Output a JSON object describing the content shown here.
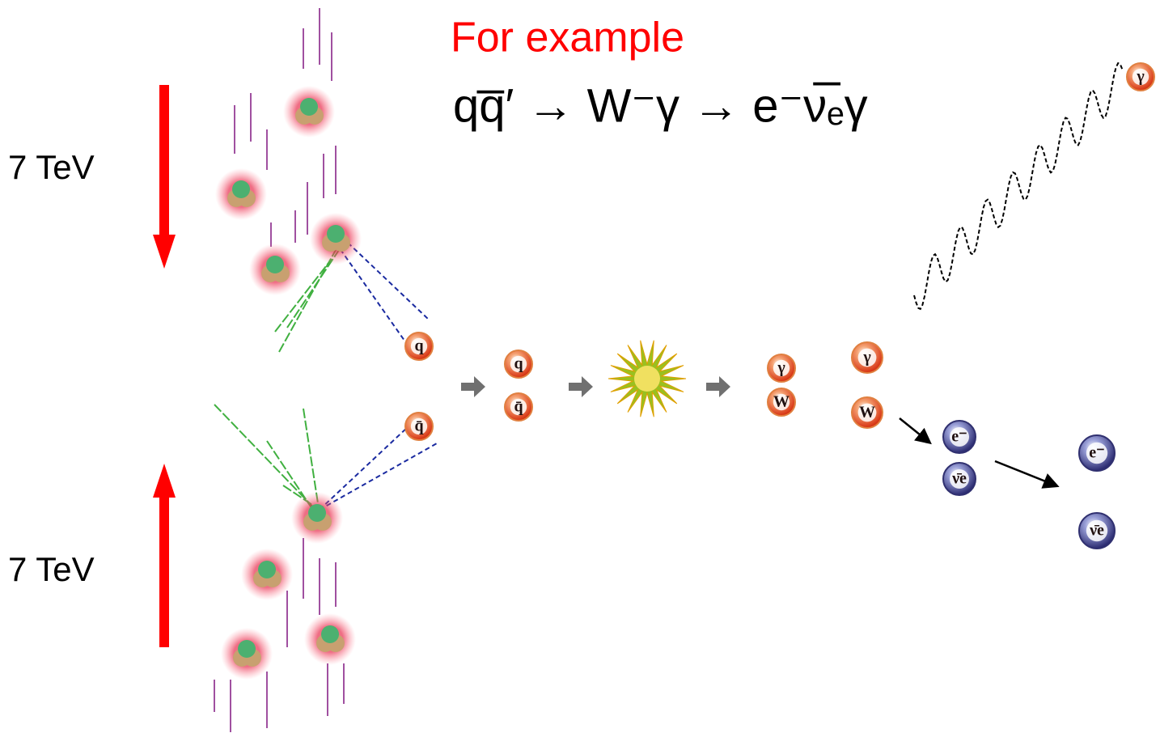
{
  "header": {
    "title": "For example",
    "equation": "qq̅′ → W⁻γ → e⁻ν̅ₑγ"
  },
  "beams": [
    {
      "label": "7 TeV"
    },
    {
      "label": "7 TeV"
    }
  ],
  "particles": [
    {
      "label": "q"
    },
    {
      "label": "q̄"
    },
    {
      "label": "q"
    },
    {
      "label": "q̄"
    },
    {
      "label": "γ"
    },
    {
      "label": "W"
    },
    {
      "label": "γ"
    },
    {
      "label": "W"
    },
    {
      "label": "e⁻"
    },
    {
      "label": "ν̄e"
    },
    {
      "label": "e⁻"
    },
    {
      "label": "ν̄e"
    },
    {
      "label": "γ"
    }
  ]
}
